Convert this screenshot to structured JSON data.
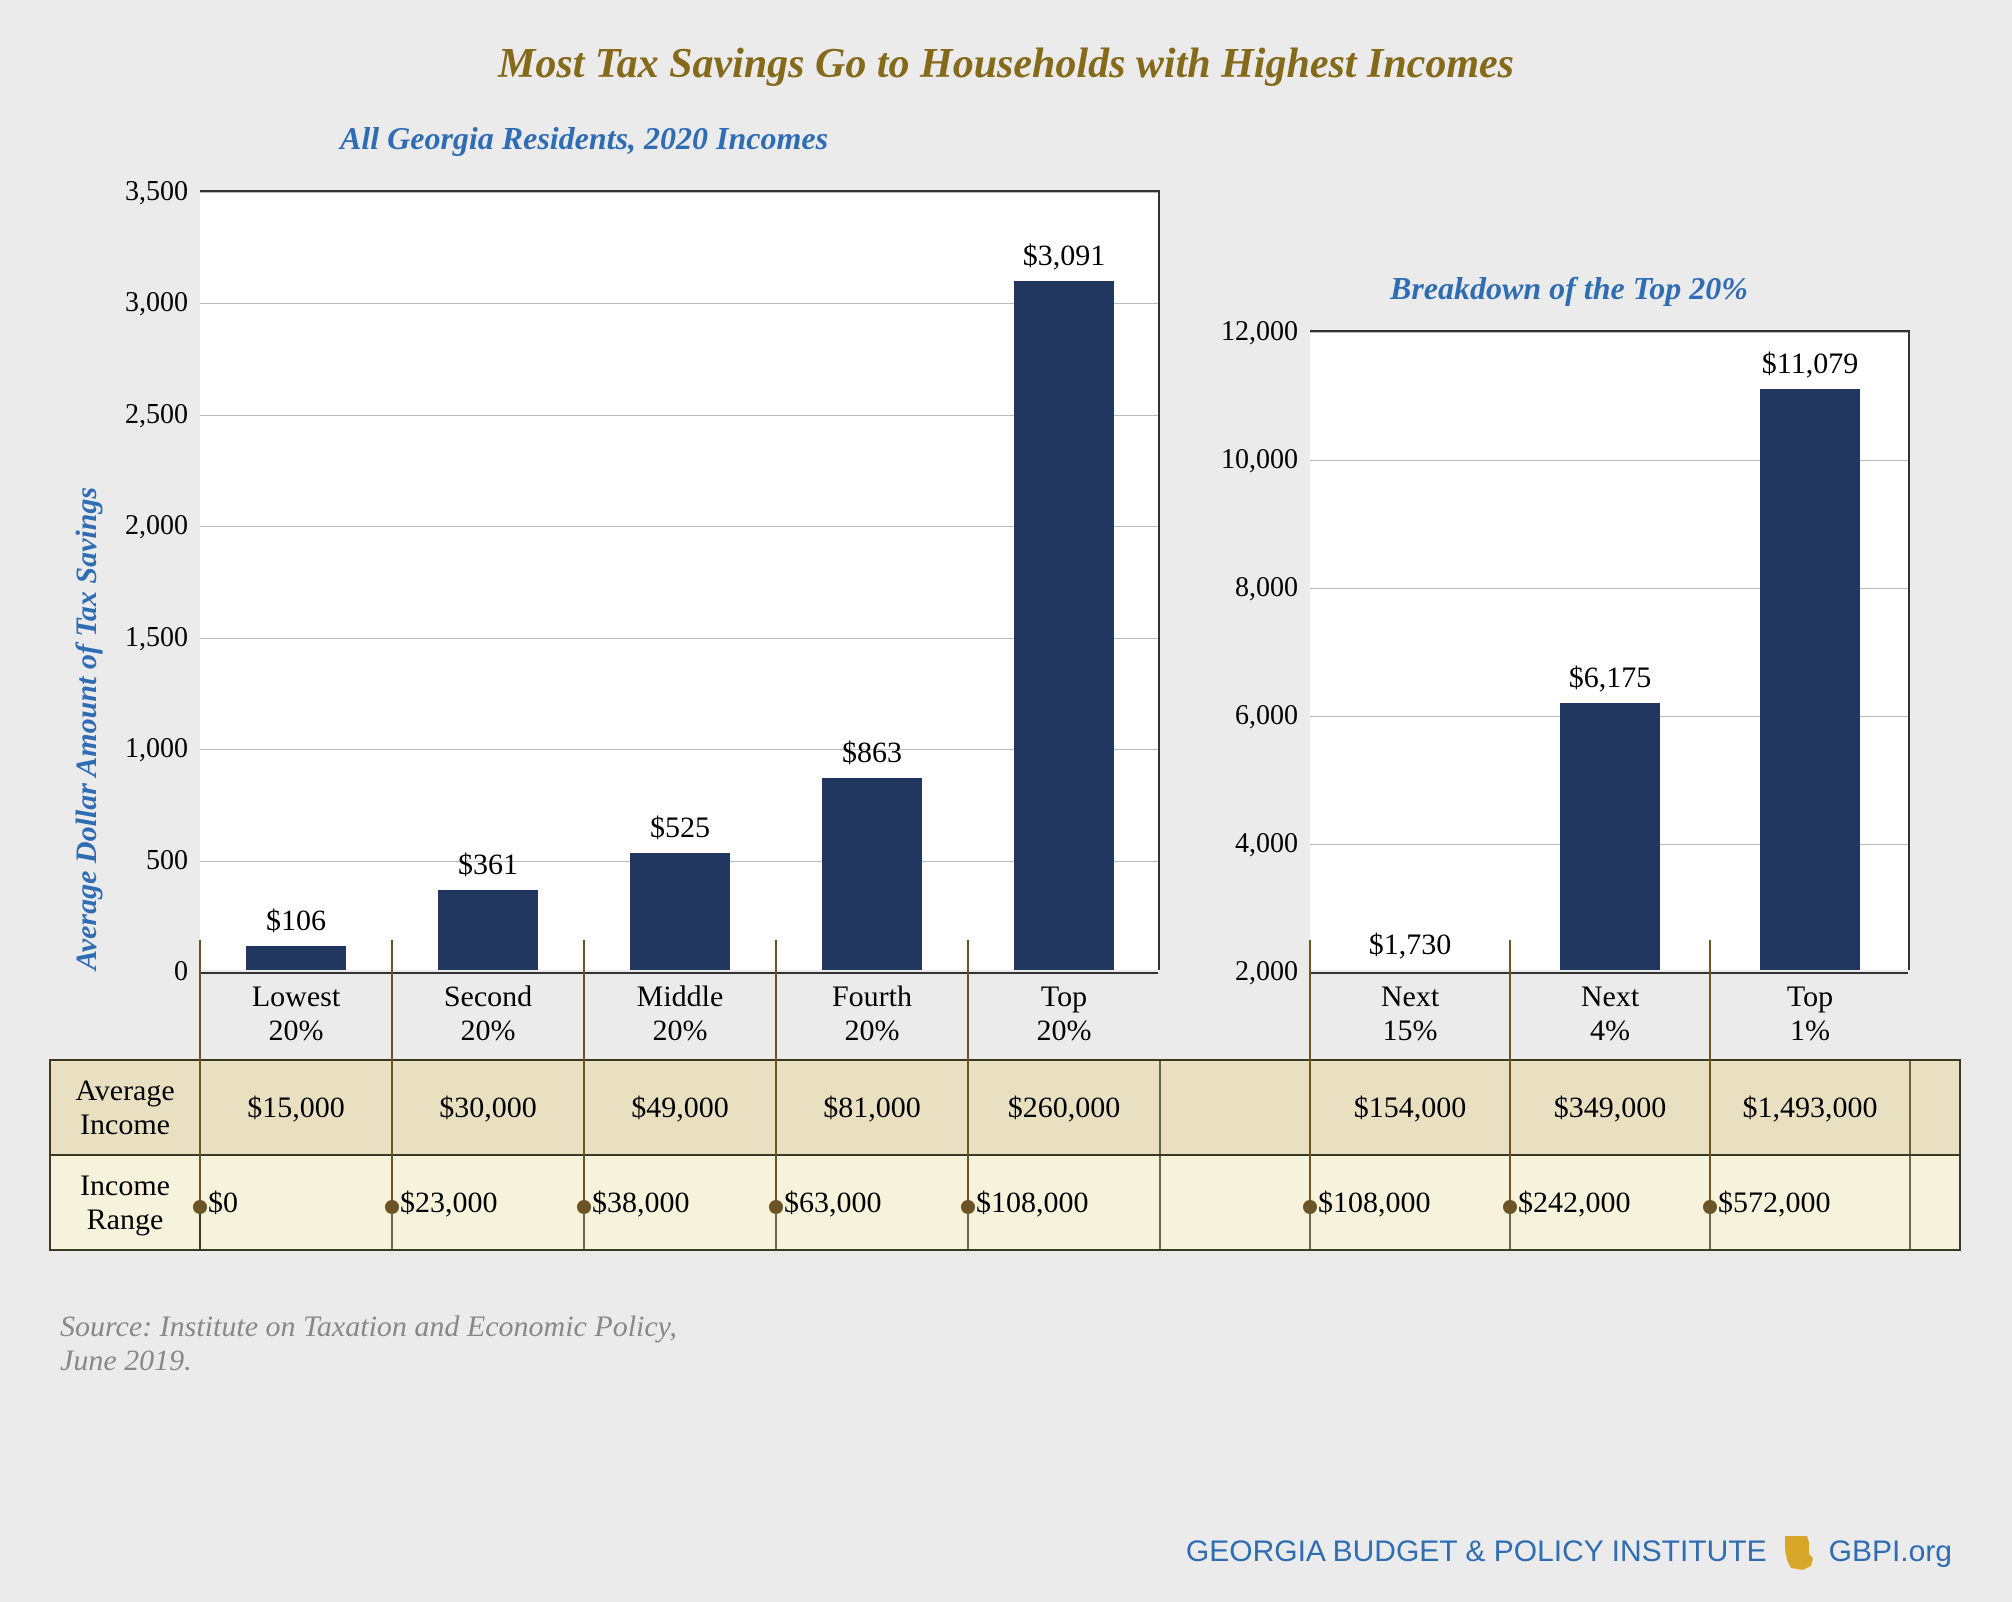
{
  "title": {
    "text": "Most Tax Savings Go to Households with Highest Incomes",
    "color": "#856a1a",
    "fontsize": 42
  },
  "subtitle_left": {
    "text": "All Georgia Residents, 2020 Incomes",
    "color": "#2e6db4",
    "fontsize": 32
  },
  "subtitle_right": {
    "text": "Breakdown of the Top 20%",
    "color": "#2e6db4",
    "fontsize": 32
  },
  "ylabel": {
    "text": "Average Dollar Amount of Tax Savings",
    "color": "#2e6db4",
    "fontsize": 30
  },
  "bar_color": "#22375f",
  "grid_color": "#bbbbbb",
  "chart_bg": "#ffffff",
  "page_bg": "#ebebeb",
  "table_band_dark": "#e9e0c2",
  "table_band_light": "#f7f2dc",
  "table_border": "#3a3a20",
  "axis_fontsize": 28,
  "bar_label_fontsize": 30,
  "cat_fontsize": 30,
  "cell_fontsize": 30,
  "rowlabel_fontsize": 30,
  "left_chart": {
    "ymin": 0,
    "ymax": 3500,
    "ystep": 500,
    "yticks": [
      "0",
      "500",
      "1,000",
      "1,500",
      "2,000",
      "2,500",
      "3,000",
      "3,500"
    ],
    "categories": [
      "Lowest\n20%",
      "Second\n20%",
      "Middle\n20%",
      "Fourth\n20%",
      "Top\n20%"
    ],
    "values": [
      106,
      361,
      525,
      863,
      3091
    ],
    "value_labels": [
      "$106",
      "$361",
      "$525",
      "$863",
      "$3,091"
    ],
    "avg_income": [
      "$15,000",
      "$30,000",
      "$49,000",
      "$81,000",
      "$260,000"
    ],
    "boundaries": [
      "$0",
      "$23,000",
      "$38,000",
      "$63,000",
      "$108,000"
    ]
  },
  "right_chart": {
    "ymin": 2000,
    "ymax": 12000,
    "ystep": 2000,
    "yticks": [
      "2,000",
      "4,000",
      "6,000",
      "8,000",
      "10,000",
      "12,000"
    ],
    "categories": [
      "Next\n15%",
      "Next\n4%",
      "Top\n1%"
    ],
    "values": [
      1730,
      6175,
      11079
    ],
    "value_labels": [
      "$1,730",
      "$6,175",
      "$11,079"
    ],
    "avg_income": [
      "$154,000",
      "$349,000",
      "$1,493,000"
    ],
    "boundaries": [
      "$108,000",
      "$242,000",
      "$572,000"
    ]
  },
  "row_labels": {
    "avg": "Average\nIncome",
    "range": "Income\nRange"
  },
  "source": {
    "text": "Source: Institute on Taxation and Economic Policy,\nJune 2019.",
    "color": "#888888",
    "fontsize": 30
  },
  "footer": {
    "org": "GEORGIA BUDGET & POLICY INSTITUTE",
    "site": "GBPI.org",
    "color": "#2e6db4",
    "icon_color": "#d8a628",
    "fontsize": 30
  }
}
